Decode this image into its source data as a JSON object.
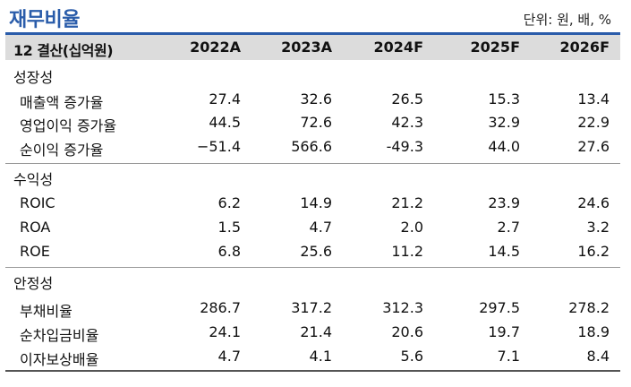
{
  "title": "재무비율",
  "unit": "단위: 원, 배, %",
  "header": {
    "label": "12 결산(십억원)",
    "columns": [
      "2022A",
      "2023A",
      "2024F",
      "2025F",
      "2026F"
    ]
  },
  "sections": [
    {
      "title": "성장성",
      "rows": [
        {
          "name": "매출액 증가율",
          "values": [
            "27.4",
            "32.6",
            "26.5",
            "15.3",
            "13.4"
          ]
        },
        {
          "name": "영업이익 증가율",
          "values": [
            "44.5",
            "72.6",
            "42.3",
            "32.9",
            "22.9"
          ]
        },
        {
          "name": "순이익 증가율",
          "values": [
            "−51.4",
            "566.6",
            "-49.3",
            "44.0",
            "27.6"
          ]
        }
      ]
    },
    {
      "title": "수익성",
      "rows": [
        {
          "name": "ROIC",
          "values": [
            "6.2",
            "14.9",
            "21.2",
            "23.9",
            "24.6"
          ]
        },
        {
          "name": "ROA",
          "values": [
            "1.5",
            "4.7",
            "2.0",
            "2.7",
            "3.2"
          ]
        },
        {
          "name": "ROE",
          "values": [
            "6.8",
            "25.6",
            "11.2",
            "14.5",
            "16.2"
          ]
        }
      ]
    },
    {
      "title": "안정성",
      "rows": [
        {
          "name": "부채비율",
          "values": [
            "286.7",
            "317.2",
            "312.3",
            "297.5",
            "278.2"
          ]
        },
        {
          "name": "순차입금비율",
          "values": [
            "24.1",
            "21.4",
            "20.6",
            "19.7",
            "18.9"
          ]
        },
        {
          "name": "이자보상배율",
          "values": [
            "4.7",
            "4.1",
            "5.6",
            "7.1",
            "8.4"
          ]
        }
      ]
    }
  ],
  "colors": {
    "accent": "#2a5caa",
    "header_bg": "#dcdcdc"
  }
}
